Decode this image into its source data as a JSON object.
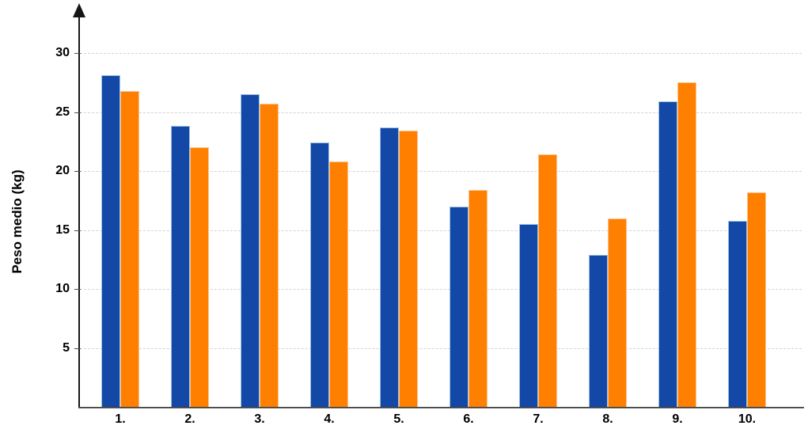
{
  "chart_data": {
    "type": "bar",
    "title": "",
    "xlabel": "",
    "ylabel": "Peso medio (kg)",
    "categories": [
      "1.",
      "2.",
      "3.",
      "4.",
      "5.",
      "6.",
      "7.",
      "8.",
      "9.",
      "10."
    ],
    "series": [
      {
        "name": "series-blue",
        "color": "#1348A6",
        "border_color": "#9DC3E6",
        "values": [
          28.1,
          23.8,
          26.5,
          22.4,
          23.7,
          17.0,
          15.5,
          12.9,
          25.9,
          15.8
        ]
      },
      {
        "name": "series-orange",
        "color": "#FF8000",
        "border_color": "#FFC18C",
        "values": [
          26.8,
          22.0,
          25.7,
          20.8,
          23.4,
          18.4,
          21.4,
          16.0,
          27.5,
          18.2
        ]
      }
    ],
    "yticks": [
      5,
      10,
      15,
      20,
      25,
      30
    ],
    "ylim": [
      0,
      33.5
    ],
    "grid": true,
    "legend_position": "none",
    "axis_arrow": "up"
  }
}
